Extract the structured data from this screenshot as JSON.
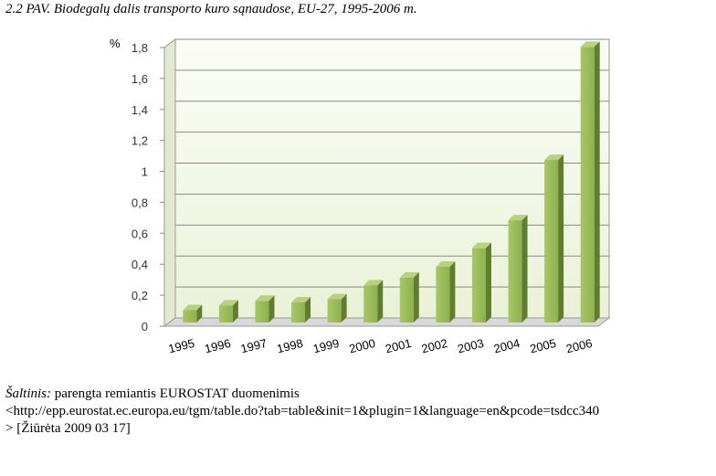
{
  "title": "2.2 PAV. Biodegalų dalis transporto kuro sąnaudose, EU-27, 1995-2006 m.",
  "chart_data": {
    "type": "bar",
    "categories": [
      "1995",
      "1996",
      "1997",
      "1998",
      "1999",
      "2000",
      "2001",
      "2002",
      "2003",
      "2004",
      "2005",
      "2006"
    ],
    "values": [
      0.08,
      0.11,
      0.14,
      0.13,
      0.15,
      0.24,
      0.29,
      0.36,
      0.48,
      0.66,
      1.05,
      1.78
    ],
    "ylabel": "%",
    "ylim": [
      0,
      1.8
    ],
    "yticks": [
      {
        "value": 0,
        "label": "0"
      },
      {
        "value": 0.2,
        "label": "0,2"
      },
      {
        "value": 0.4,
        "label": "0,4"
      },
      {
        "value": 0.6,
        "label": "0,6"
      },
      {
        "value": 0.8,
        "label": "0,8"
      },
      {
        "value": 1.0,
        "label": "1"
      },
      {
        "value": 1.2,
        "label": "1,2"
      },
      {
        "value": 1.4,
        "label": "1,4"
      },
      {
        "value": 1.6,
        "label": "1,6"
      },
      {
        "value": 1.8,
        "label": "1,8"
      }
    ],
    "grid": true,
    "bar_color": "#9bbb59"
  },
  "source": {
    "label": "Šaltinis:",
    "text": " parengta remiantis EUROSTAT duomenimis",
    "url_line": "<http://epp.eurostat.ec.europa.eu/tgm/table.do?tab=table&init=1&plugin=1&language=en&pcode=tsdcc340",
    "date_line": "> [Žiūrėta 2009 03 17]"
  }
}
